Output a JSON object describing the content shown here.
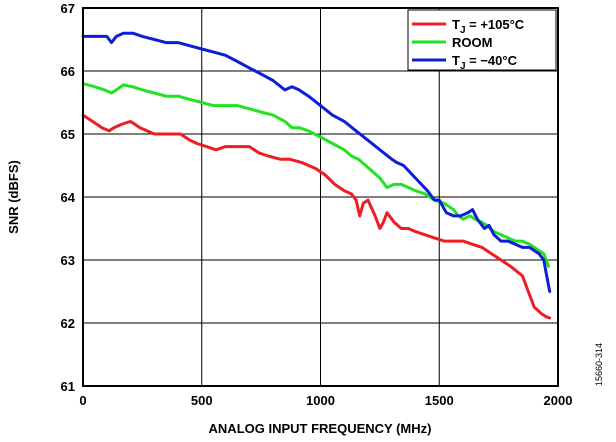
{
  "chart_data": {
    "type": "line",
    "xlabel": "ANALOG INPUT FREQUENCY (MHz)",
    "ylabel": "SNR (dBFS)",
    "xlim": [
      0,
      2000
    ],
    "ylim": [
      61,
      67
    ],
    "xticks": [
      0,
      500,
      1000,
      1500,
      2000
    ],
    "yticks": [
      61,
      62,
      63,
      64,
      65,
      66,
      67
    ],
    "grid": true,
    "legend_position": "top-right",
    "figure_id": "15660-314",
    "series": [
      {
        "name_main": "T",
        "name_sub": "J",
        "name_tail": " = +105°C",
        "color": "#ee1c24",
        "x": [
          0,
          40,
          80,
          110,
          130,
          160,
          200,
          240,
          300,
          360,
          410,
          450,
          480,
          520,
          560,
          600,
          640,
          700,
          740,
          780,
          830,
          870,
          920,
          980,
          1020,
          1060,
          1100,
          1130,
          1150,
          1165,
          1180,
          1200,
          1230,
          1250,
          1265,
          1280,
          1310,
          1340,
          1370,
          1400,
          1440,
          1480,
          1520,
          1560,
          1600,
          1640,
          1680,
          1720,
          1760,
          1800,
          1850,
          1880,
          1900,
          1930,
          1950,
          1965
        ],
        "values": [
          65.3,
          65.2,
          65.1,
          65.05,
          65.1,
          65.15,
          65.2,
          65.1,
          65.0,
          65.0,
          65.0,
          64.9,
          64.85,
          64.8,
          64.75,
          64.8,
          64.8,
          64.8,
          64.7,
          64.65,
          64.6,
          64.6,
          64.55,
          64.45,
          64.35,
          64.2,
          64.1,
          64.05,
          63.95,
          63.7,
          63.9,
          63.95,
          63.7,
          63.5,
          63.6,
          63.75,
          63.6,
          63.5,
          63.5,
          63.45,
          63.4,
          63.35,
          63.3,
          63.3,
          63.3,
          63.25,
          63.2,
          63.1,
          63.0,
          62.9,
          62.75,
          62.45,
          62.25,
          62.15,
          62.1,
          62.08
        ]
      },
      {
        "name": "ROOM",
        "color": "#22e322",
        "x": [
          0,
          50,
          90,
          120,
          140,
          170,
          210,
          250,
          300,
          350,
          400,
          450,
          500,
          550,
          600,
          650,
          700,
          750,
          800,
          850,
          880,
          910,
          950,
          1000,
          1050,
          1100,
          1130,
          1160,
          1190,
          1220,
          1250,
          1280,
          1310,
          1340,
          1370,
          1400,
          1440,
          1480,
          1520,
          1560,
          1580,
          1600,
          1630,
          1650,
          1680,
          1700,
          1730,
          1760,
          1790,
          1820,
          1850,
          1880,
          1900,
          1920,
          1940,
          1960
        ],
        "values": [
          65.8,
          65.75,
          65.7,
          65.65,
          65.7,
          65.78,
          65.75,
          65.7,
          65.65,
          65.6,
          65.6,
          65.55,
          65.5,
          65.45,
          65.45,
          65.45,
          65.4,
          65.35,
          65.3,
          65.2,
          65.1,
          65.1,
          65.05,
          64.95,
          64.85,
          64.75,
          64.65,
          64.6,
          64.5,
          64.4,
          64.3,
          64.15,
          64.2,
          64.2,
          64.15,
          64.1,
          64.05,
          63.95,
          63.9,
          63.8,
          63.7,
          63.65,
          63.7,
          63.65,
          63.6,
          63.55,
          63.45,
          63.4,
          63.35,
          63.3,
          63.3,
          63.25,
          63.2,
          63.15,
          63.1,
          62.9
        ]
      },
      {
        "name_main": "T",
        "name_sub": "J",
        "name_tail": " = −40°C",
        "color": "#0c1fd6",
        "x": [
          0,
          50,
          100,
          120,
          140,
          170,
          210,
          250,
          300,
          350,
          400,
          450,
          500,
          550,
          600,
          650,
          700,
          750,
          800,
          850,
          880,
          910,
          950,
          1000,
          1050,
          1100,
          1150,
          1200,
          1250,
          1300,
          1320,
          1350,
          1400,
          1450,
          1480,
          1500,
          1530,
          1560,
          1590,
          1620,
          1640,
          1660,
          1690,
          1710,
          1730,
          1760,
          1790,
          1820,
          1850,
          1880,
          1900,
          1920,
          1940,
          1950,
          1965
        ],
        "values": [
          66.55,
          66.55,
          66.55,
          66.45,
          66.55,
          66.6,
          66.6,
          66.55,
          66.5,
          66.45,
          66.45,
          66.4,
          66.35,
          66.3,
          66.25,
          66.15,
          66.05,
          65.95,
          65.85,
          65.7,
          65.75,
          65.7,
          65.6,
          65.45,
          65.3,
          65.2,
          65.05,
          64.9,
          64.75,
          64.6,
          64.55,
          64.5,
          64.3,
          64.1,
          63.95,
          63.95,
          63.75,
          63.7,
          63.7,
          63.75,
          63.8,
          63.65,
          63.5,
          63.55,
          63.4,
          63.3,
          63.3,
          63.25,
          63.2,
          63.2,
          63.15,
          63.1,
          63.0,
          62.8,
          62.5
        ]
      }
    ]
  }
}
